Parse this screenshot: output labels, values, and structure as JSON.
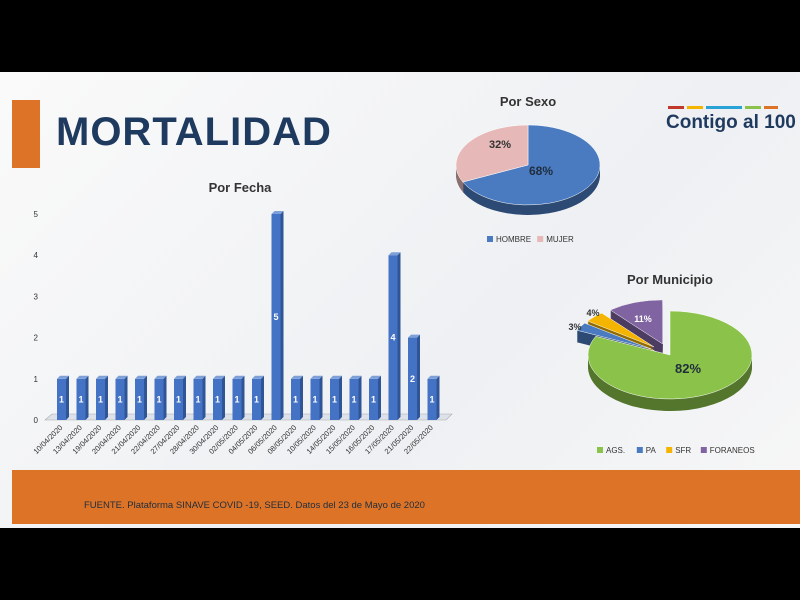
{
  "title": "MORTALIDAD",
  "logo": "Contigo al 100",
  "footer": "FUENTE. Plataforma SINAVE COVID -19, SEED. Datos del 23 de Mayo de 2020",
  "colors": {
    "accent": "#dd7327",
    "bar": "#4472c4",
    "hombre": "#4a7bc0",
    "mujer": "#e6b9b8",
    "ags": "#8bc34a",
    "pa": "#4a7bc0",
    "sfr": "#f4b400",
    "foraneos": "#8064a2"
  },
  "chart_data": [
    {
      "type": "bar",
      "title": "Por Fecha",
      "categories": [
        "10/04/2020",
        "13/04/2020",
        "19/04/2020",
        "20/04/2020",
        "21/04/2020",
        "22/04/2020",
        "27/04/2020",
        "28/04/2020",
        "30/04/2020",
        "02/05/2020",
        "04/05/2020",
        "06/05/2020",
        "08/05/2020",
        "10/05/2020",
        "14/05/2020",
        "15/05/2020",
        "16/05/2020",
        "17/05/2020",
        "21/05/2020",
        "22/05/2020"
      ],
      "values": [
        1,
        1,
        1,
        1,
        1,
        1,
        1,
        1,
        1,
        1,
        1,
        5,
        1,
        1,
        1,
        1,
        1,
        4,
        2,
        1
      ],
      "ylim": [
        0,
        5
      ],
      "yticks": [
        "0",
        "1",
        "2",
        "3",
        "4",
        "5"
      ]
    },
    {
      "type": "pie",
      "title": "Por Sexo",
      "labels": [
        "HOMBRE",
        "MUJER"
      ],
      "values": [
        68,
        32
      ],
      "data_labels": [
        "68%",
        "32%"
      ],
      "legend": "bottom"
    },
    {
      "type": "pie",
      "title": "Por Municipio",
      "labels": [
        "AGS.",
        "PA",
        "SFR",
        "FORANEOS"
      ],
      "values": [
        82,
        3,
        4,
        11
      ],
      "data_labels": [
        "82%",
        "3%",
        "4%",
        "11%"
      ],
      "legend": "bottom"
    }
  ]
}
